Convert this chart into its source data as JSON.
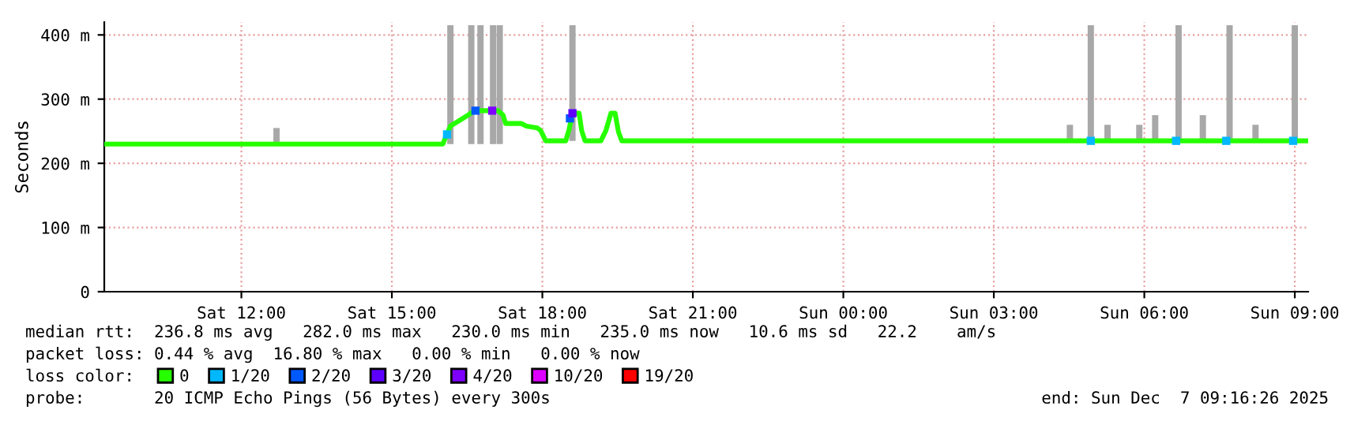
{
  "chart_data": {
    "type": "line",
    "ylabel": "Seconds",
    "xlim": [
      "2025-12-06T09:16",
      "2025-12-07T09:16"
    ],
    "xticks": [
      {
        "value": "2025-12-06T12:00",
        "label": "Sat 12:00"
      },
      {
        "value": "2025-12-06T15:00",
        "label": "Sat 15:00"
      },
      {
        "value": "2025-12-06T18:00",
        "label": "Sat 18:00"
      },
      {
        "value": "2025-12-06T21:00",
        "label": "Sat 21:00"
      },
      {
        "value": "2025-12-07T00:00",
        "label": "Sun 00:00"
      },
      {
        "value": "2025-12-07T03:00",
        "label": "Sun 03:00"
      },
      {
        "value": "2025-12-07T06:00",
        "label": "Sun 06:00"
      },
      {
        "value": "2025-12-07T09:00",
        "label": "Sun 09:00"
      }
    ],
    "ylim": [
      0,
      420
    ],
    "yticks": [
      0,
      {
        "value": 100,
        "label": "100 m"
      },
      {
        "value": 200,
        "label": "200 m"
      },
      {
        "value": 300,
        "label": "300 m"
      },
      {
        "value": 400,
        "label": "400 m"
      }
    ],
    "grid": true,
    "legend": "bottom left",
    "legend_title": "loss color:",
    "series": [
      {
        "type": "bar",
        "color": "#a8a8a8",
        "x": [
          "2025-12-06T12:42",
          "2025-12-06T16:10",
          "2025-12-06T16:35",
          "2025-12-06T16:46",
          "2025-12-06T17:01",
          "2025-12-06T17:09",
          "2025-12-06T18:36",
          "2025-12-07T04:31",
          "2025-12-07T04:56",
          "2025-12-07T05:16",
          "2025-12-07T05:54",
          "2025-12-07T06:13",
          "2025-12-07T06:41",
          "2025-12-07T07:10",
          "2025-12-07T07:42",
          "2025-12-07T08:13",
          "2025-12-07T09:00"
        ],
        "base": [
          230,
          230,
          230,
          230,
          230,
          230,
          235,
          235,
          235,
          235,
          235,
          235,
          235,
          235,
          235,
          235,
          235
        ],
        "values": [
          25,
          185,
          185,
          185,
          185,
          185,
          180,
          25,
          180,
          25,
          25,
          40,
          180,
          40,
          180,
          25,
          180
        ]
      },
      {
        "name": "0",
        "color": "#26ff00",
        "x": [
          "2025-12-06T09:16",
          "2025-12-06T16:01",
          "2025-12-06T16:04",
          "2025-12-06T16:10",
          "2025-12-06T16:20",
          "2025-12-06T16:31",
          "2025-12-06T16:39",
          "2025-12-06T17:07",
          "2025-12-06T17:13",
          "2025-12-06T17:16",
          "2025-12-06T17:35",
          "2025-12-06T17:41",
          "2025-12-06T17:54",
          "2025-12-06T17:58",
          "2025-12-06T18:04",
          "2025-12-06T18:28",
          "2025-12-06T18:32",
          "2025-12-06T18:36",
          "2025-12-06T18:44",
          "2025-12-06T18:47",
          "2025-12-06T18:51",
          "2025-12-06T19:10",
          "2025-12-06T19:16",
          "2025-12-06T19:22",
          "2025-12-06T19:27",
          "2025-12-06T19:31",
          "2025-12-06T19:35",
          "2025-12-07T09:16"
        ],
        "values": [
          230,
          230,
          240,
          258,
          266,
          275,
          282,
          282,
          275,
          262,
          262,
          258,
          255,
          251,
          235,
          235,
          253,
          278,
          278,
          251,
          235,
          235,
          251,
          278,
          278,
          249,
          235,
          235
        ]
      },
      {
        "type": "scatter",
        "name": "1/20",
        "color": "#00b8ff",
        "x": [
          "2025-12-06T16:06",
          "2025-12-07T04:56",
          "2025-12-07T06:38",
          "2025-12-07T07:38",
          "2025-12-07T08:58"
        ],
        "values": [
          245,
          235,
          235,
          235,
          235
        ]
      },
      {
        "type": "scatter",
        "name": "2/20",
        "color": "#0059ff",
        "x": [
          "2025-12-06T16:40",
          "2025-12-06T18:33"
        ],
        "values": [
          282,
          270
        ]
      },
      {
        "type": "scatter",
        "name": "3/20",
        "color": "#5e00ff",
        "x": [
          "2025-12-06T18:36"
        ],
        "values": [
          278
        ]
      },
      {
        "type": "scatter",
        "name": "4/20",
        "color": "#7e00ff",
        "x": [
          "2025-12-06T17:00"
        ],
        "values": [
          282
        ]
      },
      {
        "type": "scatter",
        "name": "10/20",
        "color": "#dd00ff"
      },
      {
        "type": "scatter",
        "name": "19/20",
        "color": "#ff0000"
      }
    ],
    "annotations": [
      "median rtt:  236.8 ms avg   282.0 ms max   230.0 ms min   235.0 ms now   10.6 ms sd   22.2    am/s",
      "packet loss: 0.44 % avg  16.80 % max   0.00 % min   0.00 % now",
      "probe:       20 ICMP Echo Pings (56 Bytes) every 300s",
      "end: Sun Dec  7 09:16:26 2025"
    ]
  }
}
